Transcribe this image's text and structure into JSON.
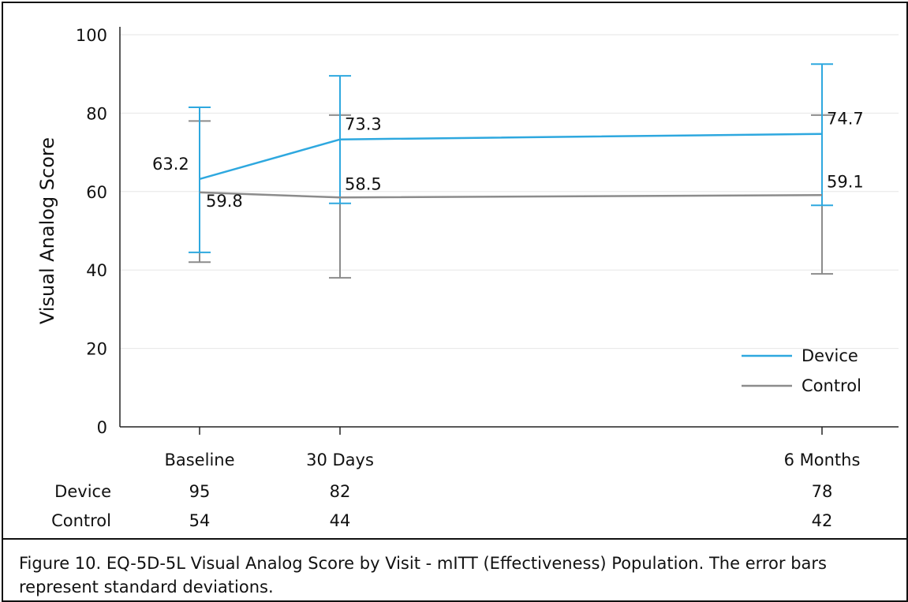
{
  "chart_data": {
    "type": "line",
    "ylabel": "Visual Analog Score",
    "xlabel": "",
    "ylim": [
      0,
      100
    ],
    "yticks": [
      0,
      20,
      40,
      60,
      80,
      100
    ],
    "categories": [
      "Baseline",
      "30 Days",
      "6 Months"
    ],
    "x_positions_days": [
      0,
      30,
      180
    ],
    "grid": true,
    "legend_position": "bottom-right",
    "series": [
      {
        "name": "Device",
        "color": "#2ea8df",
        "values": [
          63.2,
          73.3,
          74.7
        ],
        "labels": [
          "63.2",
          "73.3",
          "74.7"
        ],
        "err_low": [
          44.5,
          57.0,
          56.5
        ],
        "err_high": [
          81.5,
          89.5,
          92.5
        ]
      },
      {
        "name": "Control",
        "color": "#8c8c8c",
        "values": [
          59.8,
          58.5,
          59.1
        ],
        "labels": [
          "59.8",
          "58.5",
          "59.1"
        ],
        "err_low": [
          42.0,
          38.0,
          39.0
        ],
        "err_high": [
          78.0,
          79.5,
          79.5
        ]
      }
    ],
    "n_table": {
      "rows": [
        {
          "label": "Device",
          "values": [
            "95",
            "82",
            "78"
          ]
        },
        {
          "label": "Control",
          "values": [
            "54",
            "44",
            "42"
          ]
        }
      ]
    }
  },
  "caption": "Figure 10. EQ-5D-5L Visual Analog Score by Visit - mITT (Effectiveness) Population. The error bars represent standard deviations."
}
